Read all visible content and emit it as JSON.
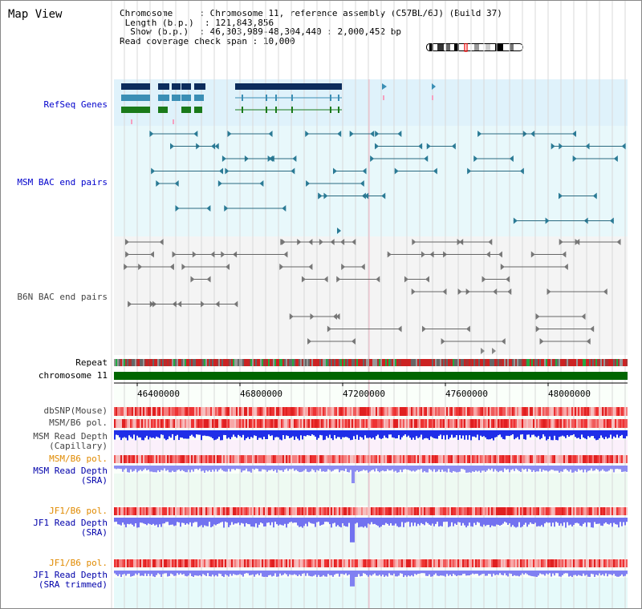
{
  "header": {
    "title": "Map View",
    "chromosome_label": "Chromosome",
    "chromosome_value": "Chromosome 11, reference assembly (C57BL/6J) (Build 37)",
    "length_label": "Length (b.p.)",
    "length_value": "121,843,856",
    "show_label": "Show (b.p.)",
    "show_value": "46,303,989-48,304,440 : 2,000,452 bp",
    "coverage_label": "Read coverage check span",
    "coverage_value": "10,000"
  },
  "tracks": {
    "refseq": "RefSeq Genes",
    "msm_bac": "MSM BAC end pairs",
    "b6n_bac": "B6N BAC end pairs",
    "repeat": "Repeat",
    "chromosome": "chromosome 11",
    "dbsnp": "dbSNP(Mouse)",
    "msm_b6_pol": "MSM/B6 pol.",
    "msm_depth_cap_1": "MSM Read Depth",
    "msm_depth_cap_2": "(Capillary)",
    "msm_b6_pol_2": "MSM/B6 pol.",
    "msm_depth_sra_1": "MSM Read Depth",
    "msm_depth_sra_2": "(SRA)",
    "jf1_b6_pol": "JF1/B6 pol.",
    "jf1_depth_sra_1": "JF1 Read Depth",
    "jf1_depth_sra_2": "(SRA)",
    "jf1_b6_pol_2": "JF1/B6 pol.",
    "jf1_depth_trim_1": "JF1 Read Depth",
    "jf1_depth_trim_2": "(SRA trimmed)"
  },
  "axis": {
    "ticks": [
      "46400000",
      "46800000",
      "47200000",
      "47600000",
      "48000000"
    ]
  },
  "colors": {
    "refseq_bg": "#dff2fb",
    "msm_bg": "#e8f8fb",
    "b6n_bg": "#f4f4f4",
    "chromosome": "#006600",
    "depth_blue": "#3333ee",
    "pol_red": "#ee3333"
  }
}
